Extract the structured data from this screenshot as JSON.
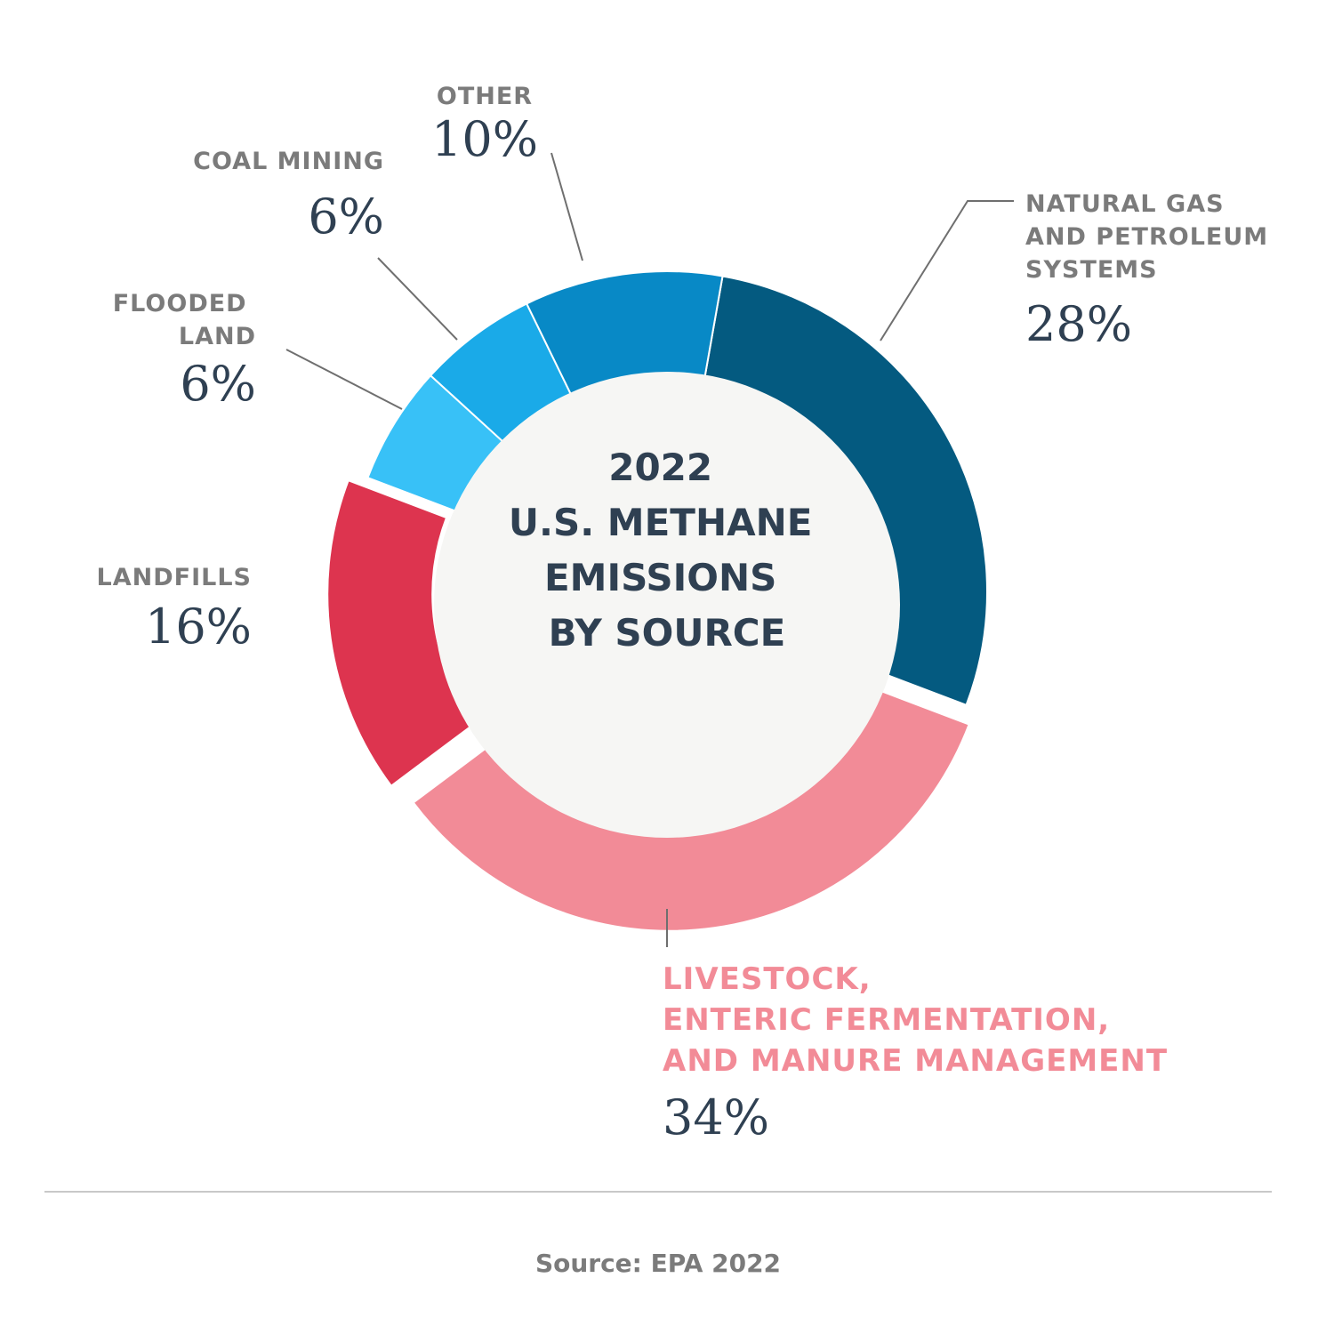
{
  "chart_data": {
    "type": "donut",
    "title": "2022 U.S. METHANE EMISSIONS BY SOURCE",
    "categories": [
      "NATURAL GAS AND PETROLEUM SYSTEMS",
      "LIVESTOCK, ENTERIC FERMENTATION, AND MANURE MANAGEMENT",
      "LANDFILLS",
      "FLOODED LAND",
      "COAL MINING",
      "OTHER"
    ],
    "values": [
      28,
      34,
      16,
      6,
      6,
      10
    ],
    "value_labels": [
      "28%",
      "34%",
      "16%",
      "6%",
      "6%",
      "10%"
    ],
    "colors": [
      "#045a80",
      "#f28b97",
      "#dd344f",
      "#38c1f7",
      "#1aaae8",
      "#0889c6"
    ],
    "source": "Source: EPA 2022"
  }
}
